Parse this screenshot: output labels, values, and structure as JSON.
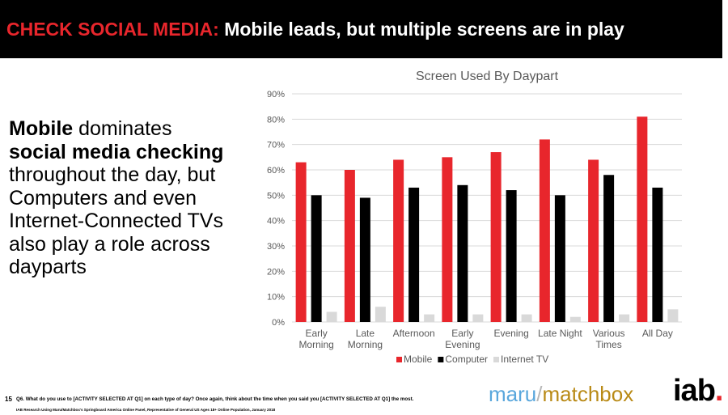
{
  "header": {
    "accent": "CHECK SOCIAL MEDIA:",
    "title": "Mobile leads, but multiple screens are in play"
  },
  "left_text": {
    "bold1": "Mobile",
    "normal1": " dominates",
    "bold2": "social media checking",
    "normal2": "throughout the day, but Computers and even Internet-Connected TVs also play a role across dayparts"
  },
  "colors": {
    "accent": "#e8262c",
    "header_bg": "#000000",
    "mobile": "#e8262c",
    "computer": "#000000",
    "tv": "#d9d9d9"
  },
  "chart_data": {
    "type": "bar",
    "title": "Screen Used By Daypart",
    "categories": [
      [
        "Early",
        "Morning"
      ],
      [
        "Late",
        "Morning"
      ],
      [
        "Afternoon"
      ],
      [
        "Early",
        "Evening"
      ],
      [
        "Evening"
      ],
      [
        "Late Night"
      ],
      [
        "Various",
        "Times"
      ],
      [
        "All Day"
      ]
    ],
    "series": [
      {
        "name": "Mobile",
        "color": "#e8262c",
        "values": [
          63,
          60,
          64,
          65,
          67,
          72,
          64,
          81
        ]
      },
      {
        "name": "Computer",
        "color": "#000000",
        "values": [
          50,
          49,
          53,
          54,
          52,
          50,
          58,
          53
        ]
      },
      {
        "name": "Internet TV",
        "color": "#d9d9d9",
        "values": [
          4,
          6,
          3,
          3,
          3,
          2,
          3,
          5
        ]
      }
    ],
    "ylim": [
      0,
      90
    ],
    "yticks": [
      "0%",
      "10%",
      "20%",
      "30%",
      "40%",
      "50%",
      "60%",
      "70%",
      "80%",
      "90%"
    ],
    "grid": true,
    "legend": "bottom"
  },
  "footer": {
    "page": "15",
    "question": "Q6. What do you use to [ACTIVITY SELECTED AT Q1] on each type of day?  Once again, think about the time when you said you [ACTIVITY SELECTED AT Q1] the most.",
    "source": "IAB Research Using Maru/Matchbox's Springboard America Online Panel, Representative of General US Ages 18+ Online Population, January 2018"
  },
  "logos": {
    "maru": "maru",
    "slash": "/",
    "matchbox": "matchbox",
    "iab": "iab",
    "iab_dot": "."
  }
}
